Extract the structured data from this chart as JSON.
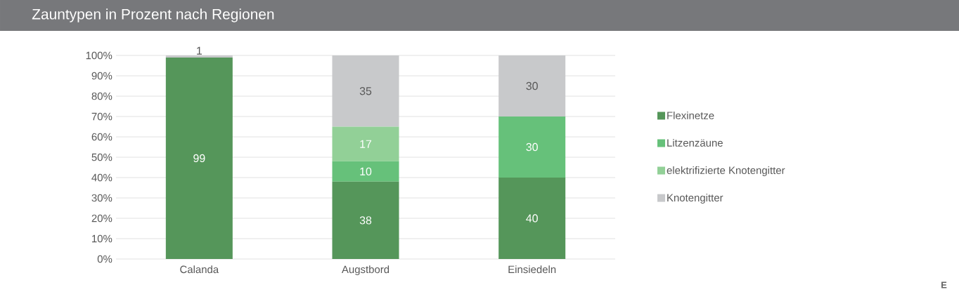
{
  "chart_data": {
    "type": "bar",
    "title": "Zauntypen in Prozent nach Regionen",
    "stacked": true,
    "categories": [
      "Calanda",
      "Augstbord",
      "Einsiedeln"
    ],
    "series": [
      {
        "name": "Flexinetze",
        "color": "#55965a",
        "values": [
          99,
          38,
          40
        ],
        "value_labels": [
          "99",
          "38",
          "40"
        ]
      },
      {
        "name": "Litzenzäune",
        "color": "#66c17a",
        "values": [
          0,
          10,
          30
        ],
        "value_labels": [
          null,
          "10",
          "30"
        ]
      },
      {
        "name": "elektrifizierte Knotengitter",
        "color": "#92d097",
        "values": [
          0,
          17,
          0
        ],
        "value_labels": [
          null,
          "17",
          null
        ]
      },
      {
        "name": "Knotengitter",
        "color": "#c8c9cb",
        "values": [
          1,
          35,
          30
        ],
        "value_labels": [
          "1",
          "35",
          "30"
        ]
      }
    ],
    "ylim": [
      0,
      100
    ],
    "yticks": [
      {
        "value": 0,
        "label": "0%"
      },
      {
        "value": 10,
        "label": "10%"
      },
      {
        "value": 20,
        "label": "20%"
      },
      {
        "value": 30,
        "label": "30%"
      },
      {
        "value": 40,
        "label": "40%"
      },
      {
        "value": 50,
        "label": "50%"
      },
      {
        "value": 60,
        "label": "60%"
      },
      {
        "value": 70,
        "label": "70%"
      },
      {
        "value": 80,
        "label": "80%"
      },
      {
        "value": 90,
        "label": "90%"
      },
      {
        "value": 100,
        "label": "100%"
      }
    ],
    "grid": "y",
    "legend": "right",
    "annotations": [
      "E"
    ]
  }
}
